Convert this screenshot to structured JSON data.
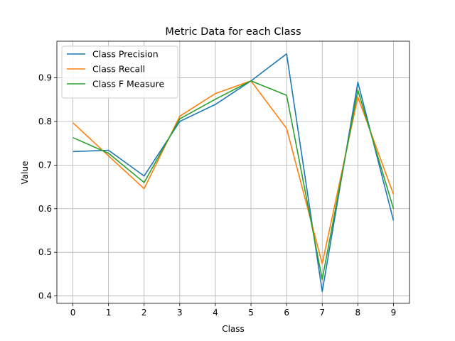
{
  "chart_data": {
    "type": "line",
    "title": "Metric Data for each Class",
    "xlabel": "Class",
    "ylabel": "Value",
    "x": [
      0,
      1,
      2,
      3,
      4,
      5,
      6,
      7,
      8,
      9
    ],
    "xticks": [
      "0",
      "1",
      "2",
      "3",
      "4",
      "5",
      "6",
      "7",
      "8",
      "9"
    ],
    "yticks": [
      "0.4",
      "0.5",
      "0.6",
      "0.7",
      "0.8",
      "0.9"
    ],
    "xlim": [
      -0.45,
      9.45
    ],
    "ylim": [
      0.383,
      0.984
    ],
    "grid": true,
    "legend_position": "top-left",
    "series": [
      {
        "name": "Class Precision",
        "color": "#1f77b4",
        "values": [
          0.731,
          0.734,
          0.675,
          0.8,
          0.839,
          0.893,
          0.955,
          0.41,
          0.89,
          0.573
        ]
      },
      {
        "name": "Class Recall",
        "color": "#ff7f0e",
        "values": [
          0.797,
          0.721,
          0.646,
          0.812,
          0.864,
          0.893,
          0.784,
          0.474,
          0.856,
          0.633
        ]
      },
      {
        "name": "Class F Measure",
        "color": "#2ca02c",
        "values": [
          0.763,
          0.727,
          0.66,
          0.806,
          0.851,
          0.893,
          0.86,
          0.438,
          0.872,
          0.6
        ]
      }
    ]
  }
}
